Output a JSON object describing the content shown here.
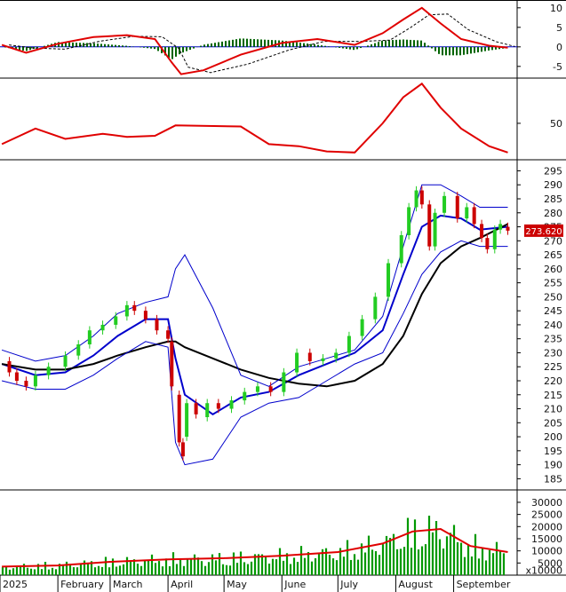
{
  "chart_data": [
    {
      "panel": "MACD",
      "type": "line",
      "y_ticks": [
        10,
        5,
        0,
        -5
      ],
      "ylim": [
        -8,
        12
      ],
      "grid": false,
      "colors": {
        "macd": "#e00000",
        "signal": "#000000",
        "histogram": "#006400"
      },
      "series": [
        {
          "values_x_date": [
            "2025-01-02",
            "2025-01-15",
            "2025-02-01",
            "2025-02-20",
            "2025-03-10",
            "2025-03-25",
            "2025-04-03",
            "2025-04-08",
            "2025-04-20",
            "2025-05-10",
            "2025-06-01",
            "2025-06-20",
            "2025-07-10",
            "2025-07-25",
            "2025-08-05",
            "2025-08-15",
            "2025-08-25",
            "2025-09-05",
            "2025-09-20",
            "2025-09-30"
          ],
          "values": [
            0.5,
            -1.5,
            0.8,
            2.5,
            3.0,
            2.0,
            -4.0,
            -7.0,
            -6.0,
            -2.0,
            1.0,
            2.0,
            0.5,
            3.5,
            7.0,
            10.0,
            6.0,
            2.0,
            0.3,
            -0.2
          ]
        }
      ]
    },
    {
      "panel": "Oscillator",
      "type": "line",
      "y_ticks": [
        50
      ],
      "ylim": [
        15,
        90
      ],
      "grid": false,
      "colors": {
        "line": "#e00000"
      },
      "series": [
        {
          "values_x_date": [
            "2025-01-02",
            "2025-01-20",
            "2025-02-05",
            "2025-02-25",
            "2025-03-10",
            "2025-03-25",
            "2025-04-05",
            "2025-05-10",
            "2025-05-25",
            "2025-06-10",
            "2025-06-25",
            "2025-07-10",
            "2025-07-25",
            "2025-08-05",
            "2025-08-15",
            "2025-08-25",
            "2025-09-05",
            "2025-09-20",
            "2025-09-30"
          ],
          "values": [
            30,
            45,
            35,
            40,
            37,
            38,
            48,
            47,
            30,
            28,
            23,
            22,
            50,
            75,
            88,
            65,
            45,
            28,
            22
          ]
        }
      ]
    },
    {
      "panel": "Price",
      "type": "line",
      "y_ticks": [
        295,
        290,
        285,
        280,
        275,
        270,
        265,
        260,
        255,
        250,
        245,
        240,
        235,
        230,
        225,
        220,
        215,
        210,
        205,
        200,
        195,
        190,
        185
      ],
      "ylim": [
        181,
        298
      ],
      "last_price": "273.620",
      "last_price_value": 273.62,
      "grid": false,
      "colors": {
        "up": "#22cc22",
        "down": "#cc0000",
        "ma_fast": "#0000cc",
        "ma_slow": "#000000",
        "bands": "#0000cc",
        "last_price_badge": "#cc0000"
      },
      "x_dates": [
        "2025-01-02",
        "2025-01-20",
        "2025-02-05",
        "2025-02-20",
        "2025-03-05",
        "2025-03-20",
        "2025-04-01",
        "2025-04-05",
        "2025-04-10",
        "2025-04-25",
        "2025-05-10",
        "2025-05-25",
        "2025-06-10",
        "2025-06-25",
        "2025-07-10",
        "2025-07-25",
        "2025-08-05",
        "2025-08-15",
        "2025-08-25",
        "2025-09-05",
        "2025-09-15",
        "2025-09-30"
      ],
      "series": [
        {
          "values": [
            224,
            220,
            228,
            238,
            244,
            246,
            236,
            205,
            195,
            212,
            217,
            222,
            229,
            230,
            232,
            252,
            270,
            287,
            274,
            276,
            270,
            275
          ]
        },
        {
          "values": [
            226,
            222,
            223,
            229,
            236,
            242,
            242,
            228,
            215,
            208,
            214,
            216,
            222,
            226,
            230,
            238,
            258,
            275,
            279,
            278,
            274,
            275
          ]
        },
        {
          "values": [
            226,
            224,
            224,
            226,
            229,
            232,
            234,
            234,
            232,
            228,
            224,
            221,
            219,
            218,
            220,
            226,
            236,
            251,
            262,
            268,
            271,
            276
          ]
        },
        {
          "values": [
            231,
            227,
            229,
            236,
            244,
            248,
            250,
            260,
            265,
            246,
            222,
            218,
            225,
            228,
            231,
            243,
            268,
            290,
            290,
            286,
            282,
            282
          ]
        },
        {
          "values": [
            220,
            217,
            217,
            222,
            228,
            234,
            232,
            198,
            190,
            192,
            207,
            212,
            214,
            220,
            226,
            230,
            244,
            258,
            266,
            270,
            268,
            268
          ]
        }
      ],
      "candles": [
        {
          "x": "2025-01-06",
          "o": 227,
          "c": 223
        },
        {
          "x": "2025-01-10",
          "o": 223,
          "c": 220
        },
        {
          "x": "2025-01-15",
          "o": 220,
          "c": 218
        },
        {
          "x": "2025-01-20",
          "o": 218,
          "c": 222
        },
        {
          "x": "2025-01-27",
          "o": 222,
          "c": 225
        },
        {
          "x": "2025-02-05",
          "o": 225,
          "c": 229
        },
        {
          "x": "2025-02-12",
          "o": 229,
          "c": 233
        },
        {
          "x": "2025-02-18",
          "o": 233,
          "c": 238
        },
        {
          "x": "2025-02-25",
          "o": 238,
          "c": 240
        },
        {
          "x": "2025-03-04",
          "o": 240,
          "c": 243
        },
        {
          "x": "2025-03-10",
          "o": 243,
          "c": 247
        },
        {
          "x": "2025-03-14",
          "o": 247,
          "c": 245
        },
        {
          "x": "2025-03-20",
          "o": 245,
          "c": 242
        },
        {
          "x": "2025-03-26",
          "o": 242,
          "c": 238
        },
        {
          "x": "2025-04-01",
          "o": 238,
          "c": 235
        },
        {
          "x": "2025-04-03",
          "o": 234,
          "c": 218
        },
        {
          "x": "2025-04-07",
          "o": 215,
          "c": 198
        },
        {
          "x": "2025-04-09",
          "o": 198,
          "c": 193
        },
        {
          "x": "2025-04-11",
          "o": 200,
          "c": 212
        },
        {
          "x": "2025-04-16",
          "o": 212,
          "c": 208
        },
        {
          "x": "2025-04-22",
          "o": 207,
          "c": 212
        },
        {
          "x": "2025-04-28",
          "o": 212,
          "c": 210
        },
        {
          "x": "2025-05-05",
          "o": 210,
          "c": 213
        },
        {
          "x": "2025-05-12",
          "o": 213,
          "c": 216
        },
        {
          "x": "2025-05-19",
          "o": 216,
          "c": 218
        },
        {
          "x": "2025-05-26",
          "o": 218,
          "c": 216
        },
        {
          "x": "2025-06-02",
          "o": 216,
          "c": 223
        },
        {
          "x": "2025-06-09",
          "o": 223,
          "c": 230
        },
        {
          "x": "2025-06-16",
          "o": 230,
          "c": 227
        },
        {
          "x": "2025-06-23",
          "o": 227,
          "c": 228
        },
        {
          "x": "2025-06-30",
          "o": 228,
          "c": 230
        },
        {
          "x": "2025-07-07",
          "o": 230,
          "c": 236
        },
        {
          "x": "2025-07-14",
          "o": 236,
          "c": 242
        },
        {
          "x": "2025-07-21",
          "o": 242,
          "c": 250
        },
        {
          "x": "2025-07-28",
          "o": 250,
          "c": 262
        },
        {
          "x": "2025-08-04",
          "o": 262,
          "c": 272
        },
        {
          "x": "2025-08-08",
          "o": 272,
          "c": 282
        },
        {
          "x": "2025-08-12",
          "o": 282,
          "c": 288
        },
        {
          "x": "2025-08-15",
          "o": 288,
          "c": 283
        },
        {
          "x": "2025-08-19",
          "o": 283,
          "c": 268
        },
        {
          "x": "2025-08-22",
          "o": 268,
          "c": 280
        },
        {
          "x": "2025-08-27",
          "o": 280,
          "c": 286
        },
        {
          "x": "2025-09-03",
          "o": 286,
          "c": 278
        },
        {
          "x": "2025-09-08",
          "o": 278,
          "c": 282
        },
        {
          "x": "2025-09-12",
          "o": 282,
          "c": 276
        },
        {
          "x": "2025-09-16",
          "o": 276,
          "c": 271
        },
        {
          "x": "2025-09-19",
          "o": 271,
          "c": 267
        },
        {
          "x": "2025-09-23",
          "o": 267,
          "c": 274
        },
        {
          "x": "2025-09-26",
          "o": 274,
          "c": 276
        },
        {
          "x": "2025-09-30",
          "o": 275,
          "c": 273.62
        }
      ]
    },
    {
      "panel": "Volume",
      "type": "bar",
      "y_ticks": [
        30000,
        25000,
        20000,
        15000,
        10000,
        5000
      ],
      "y_unit_label": "x10000",
      "ylim": [
        0,
        34000
      ],
      "grid": false,
      "colors": {
        "bars": "#009900",
        "ma": "#e00000"
      },
      "x_dates": [
        "2025-01-02",
        "2025-02-01",
        "2025-03-01",
        "2025-04-01",
        "2025-05-01",
        "2025-06-01",
        "2025-07-01",
        "2025-07-25",
        "2025-08-10",
        "2025-08-25",
        "2025-09-10",
        "2025-09-30"
      ],
      "series": [
        {
          "values": [
            3500,
            4000,
            5500,
            6500,
            7000,
            8000,
            9500,
            13000,
            18000,
            19000,
            12000,
            9500
          ]
        }
      ]
    }
  ],
  "x_axis": {
    "start_date": "2025-01-01",
    "end_date": "2025-10-05",
    "labels": [
      {
        "text": "2025",
        "date": "2025-01-01"
      },
      {
        "text": "February",
        "date": "2025-02-01"
      },
      {
        "text": "March",
        "date": "2025-03-01"
      },
      {
        "text": "April",
        "date": "2025-04-01"
      },
      {
        "text": "May",
        "date": "2025-05-01"
      },
      {
        "text": "June",
        "date": "2025-06-01"
      },
      {
        "text": "July",
        "date": "2025-07-01"
      },
      {
        "text": "August",
        "date": "2025-08-01"
      },
      {
        "text": "September",
        "date": "2025-09-01"
      }
    ]
  }
}
